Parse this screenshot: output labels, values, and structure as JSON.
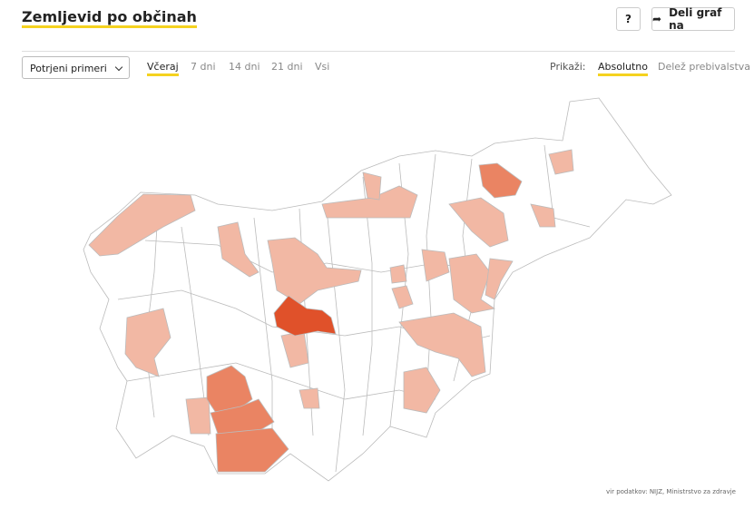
{
  "header": {
    "title": "Zemljevid po občinah",
    "help_button": "?",
    "share_button": "Deli graf na"
  },
  "controls": {
    "select": "Potrjeni primeri",
    "periods": [
      "Včeraj",
      "7 dni",
      "14 dni",
      "21 dni",
      "Vsi"
    ],
    "show_label": "Prikaži:",
    "modes": [
      "Absolutno",
      "Delež prebivalstva"
    ]
  },
  "source": "vir podatkov: NIJZ, Ministrstvo za zdravje"
}
